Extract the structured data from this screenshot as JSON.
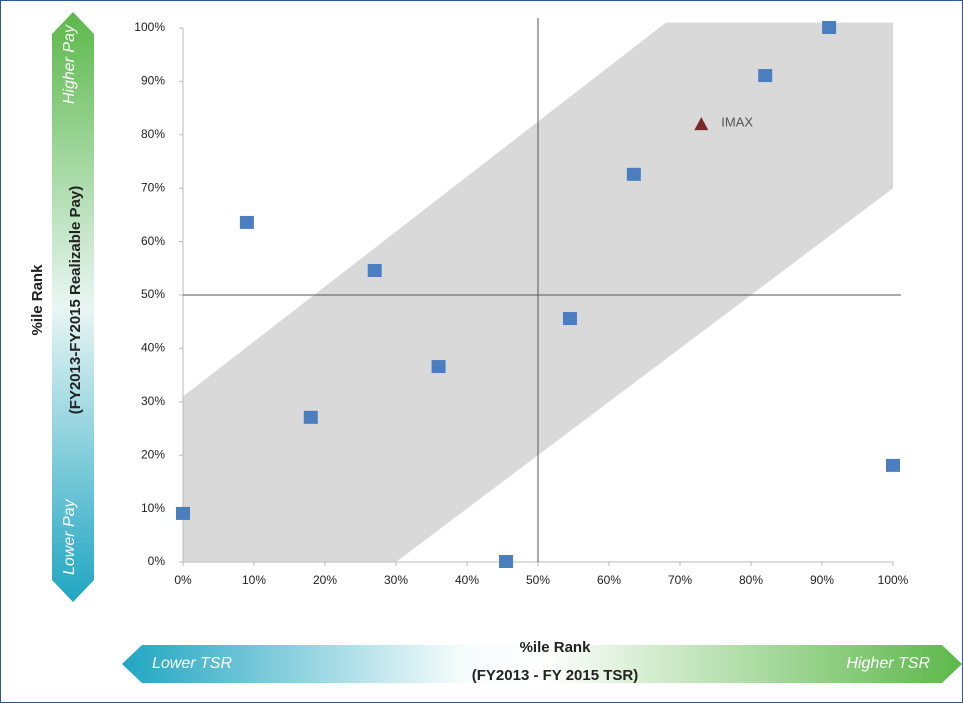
{
  "chart_data": {
    "type": "scatter",
    "x_label": [
      "%ile Rank",
      "(FY2013 - FY 2015 TSR)"
    ],
    "y_label": [
      "%ile Rank",
      "(FY2013-FY2015 Realizable Pay)"
    ],
    "x_arrow_labels": [
      "Lower TSR",
      "Higher TSR"
    ],
    "y_arrow_labels": [
      "Lower Pay",
      "Higher Pay"
    ],
    "xlim": [
      0,
      100
    ],
    "ylim": [
      0,
      100
    ],
    "xticks": [
      {
        "value": 0,
        "label": "0%"
      },
      {
        "value": 10,
        "label": "10%"
      },
      {
        "value": 20,
        "label": "20%"
      },
      {
        "value": 30,
        "label": "30%"
      },
      {
        "value": 40,
        "label": "40%"
      },
      {
        "value": 50,
        "label": "50%"
      },
      {
        "value": 60,
        "label": "60%"
      },
      {
        "value": 70,
        "label": "70%"
      },
      {
        "value": 80,
        "label": "80%"
      },
      {
        "value": 90,
        "label": "90%"
      },
      {
        "value": 100,
        "label": "100%"
      }
    ],
    "yticks": [
      {
        "value": 0,
        "label": "0%"
      },
      {
        "value": 10,
        "label": "10%"
      },
      {
        "value": 20,
        "label": "20%"
      },
      {
        "value": 30,
        "label": "30%"
      },
      {
        "value": 40,
        "label": "40%"
      },
      {
        "value": 50,
        "label": "50%"
      },
      {
        "value": 60,
        "label": "60%"
      },
      {
        "value": 70,
        "label": "70%"
      },
      {
        "value": 80,
        "label": "80%"
      },
      {
        "value": 90,
        "label": "90%"
      },
      {
        "value": 100,
        "label": "100%"
      }
    ],
    "reference_lines": {
      "x": 50,
      "y": 50
    },
    "band_polygon": {
      "x": [
        0,
        30,
        100,
        100,
        68,
        0
      ],
      "y": [
        0,
        0,
        70,
        101,
        101,
        31
      ],
      "color": "#d9d9d9"
    },
    "series": [
      {
        "color": "#4a7ebf",
        "marker": "square",
        "x": [
          0,
          9,
          18,
          27,
          36,
          45.5,
          54.5,
          63.5,
          82,
          91,
          100
        ],
        "y": [
          9,
          63.5,
          27,
          54.5,
          36.5,
          0,
          45.5,
          72.5,
          91,
          100,
          18
        ]
      },
      {
        "name": "IMAX",
        "color": "#7b2a2a",
        "marker": "triangle",
        "x": [
          73
        ],
        "y": [
          82
        ]
      }
    ]
  }
}
